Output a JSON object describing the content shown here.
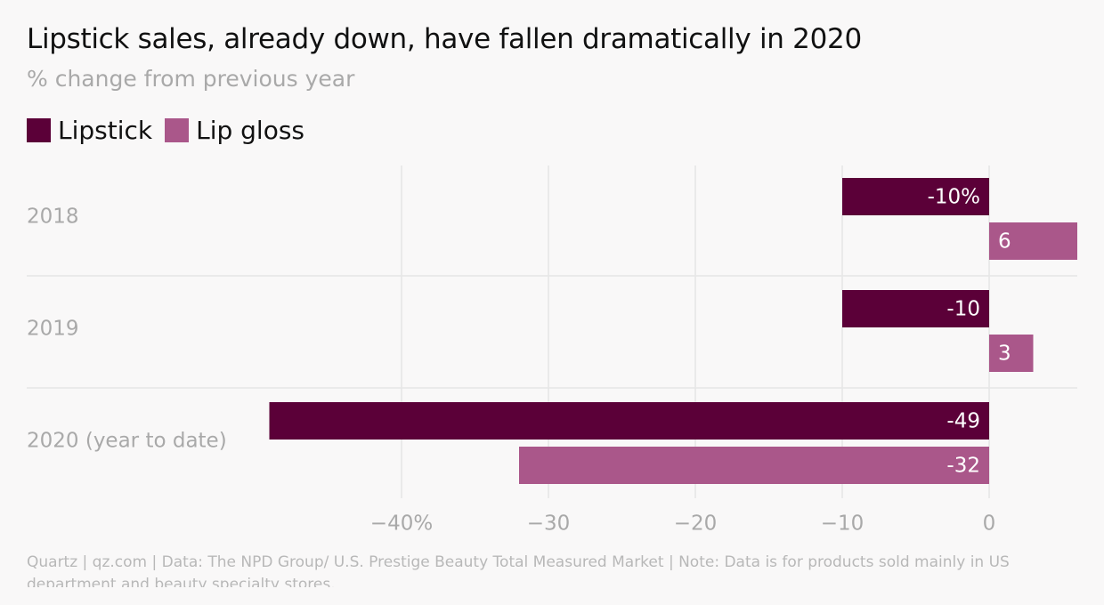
{
  "chart_data": {
    "type": "bar",
    "orientation": "horizontal",
    "title": "Lipstick sales, already down, have fallen dramatically in 2020",
    "subtitle": "% change from previous year",
    "categories": [
      "2018",
      "2019",
      "2020 (year to date)"
    ],
    "series": [
      {
        "name": "Lipstick",
        "color": "#5b0038",
        "values": [
          -10,
          -10,
          -49
        ],
        "value_labels": [
          "-10%",
          "-10",
          "-49"
        ]
      },
      {
        "name": "Lip gloss",
        "color": "#aa578a",
        "values": [
          6,
          3,
          -32
        ],
        "value_labels": [
          "6",
          "3",
          "-32"
        ]
      }
    ],
    "x_ticks": [
      -40,
      -30,
      -20,
      -10,
      0
    ],
    "x_tick_labels": [
      "−40%",
      "−30",
      "−20",
      "−10",
      "0"
    ],
    "xlim": [
      -50,
      6
    ],
    "grid": true,
    "legend_position": "top-left"
  },
  "footer": "Quartz | qz.com | Data: The NPD Group/ U.S. Prestige Beauty Total Measured Market | Note: Data is for products sold mainly in US department and beauty specialty stores."
}
